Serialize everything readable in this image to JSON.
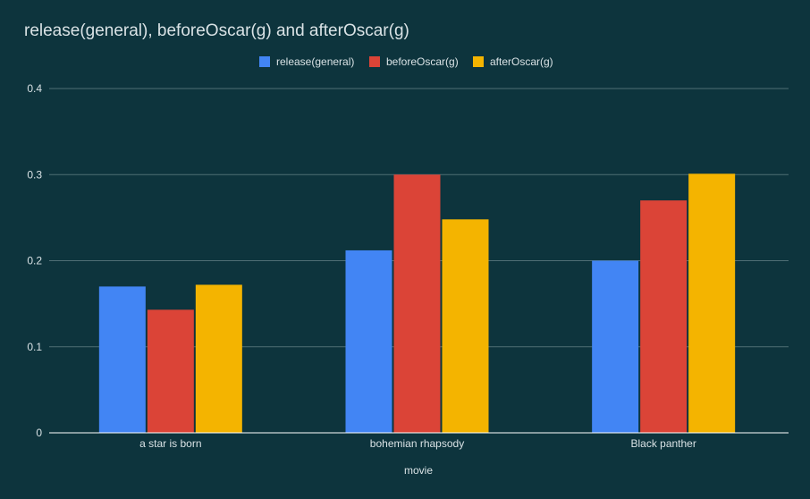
{
  "chart_data": {
    "type": "bar",
    "title": "release(general), beforeOscar(g) and afterOscar(g)",
    "xlabel": "movie",
    "ylabel": "",
    "categories": [
      "a star is born",
      "bohemian rhapsody",
      "Black panther"
    ],
    "series": [
      {
        "name": "release(general)",
        "color": "#4285f4",
        "values": [
          0.17,
          0.212,
          0.2
        ]
      },
      {
        "name": "beforeOscar(g)",
        "color": "#db4437",
        "values": [
          0.143,
          0.3,
          0.27
        ]
      },
      {
        "name": "afterOscar(g)",
        "color": "#f4b400",
        "values": [
          0.172,
          0.248,
          0.301
        ]
      }
    ],
    "ylim": [
      0,
      0.4
    ],
    "yticks": [
      "0",
      "0.1",
      "0.2",
      "0.3",
      "0.4"
    ],
    "grid": true,
    "legend": "top-center"
  },
  "colors": {
    "background": "#0d343d",
    "gridline": "#4f6e75",
    "axis": "#ffffff",
    "text": "#d9e2e5"
  }
}
